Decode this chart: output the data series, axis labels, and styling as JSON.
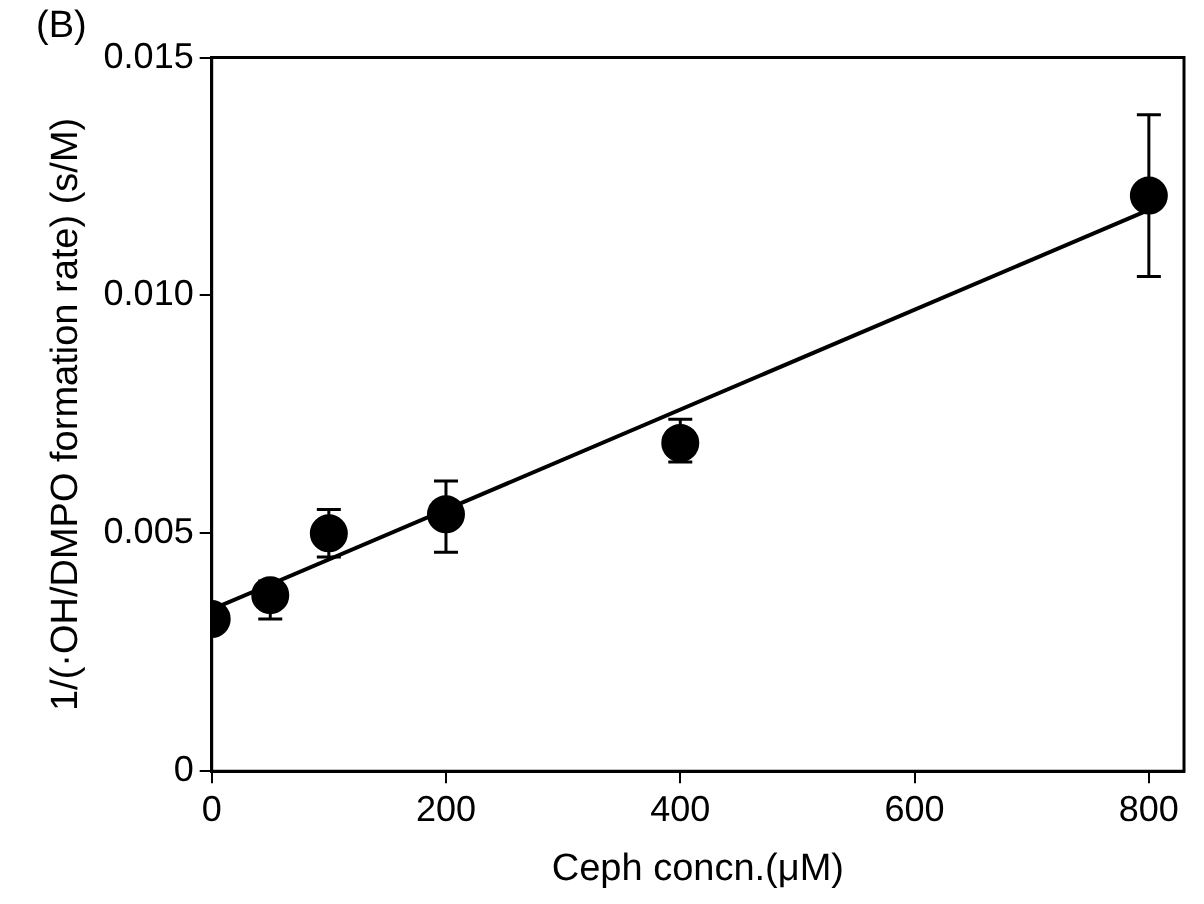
{
  "chart_data": {
    "type": "scatter",
    "title": "(B)",
    "xlabel": "Ceph concn.(μM)",
    "ylabel": "1/(·OH/DMPO formation rate) (s/M)",
    "series": [
      {
        "marker": "circle",
        "color": "#000000",
        "x": [
          0,
          50,
          100,
          200,
          400,
          800
        ],
        "values": [
          0.0032,
          0.0037,
          0.005,
          0.0054,
          0.0069,
          0.0121
        ],
        "errors": [
          null,
          [
            0.0032,
            0.004
          ],
          [
            0.0045,
            0.0055
          ],
          [
            0.0046,
            0.0061
          ],
          [
            0.0065,
            0.0074
          ],
          [
            0.0104,
            0.0138
          ]
        ]
      },
      {
        "type": "line",
        "marker": "none",
        "color": "#000000",
        "x": [
          0,
          800
        ],
        "values": [
          0.0034,
          0.0118
        ]
      }
    ],
    "xlim": [
      0,
      830
    ],
    "xticks": [
      0,
      200,
      400,
      600,
      800
    ],
    "ylim": [
      0,
      0.015
    ],
    "yticks": [
      0,
      0.005,
      {
        "value": 0.01,
        "label": "0.010"
      },
      0.015
    ],
    "line_style": "solid",
    "grid": false,
    "legend": false
  }
}
